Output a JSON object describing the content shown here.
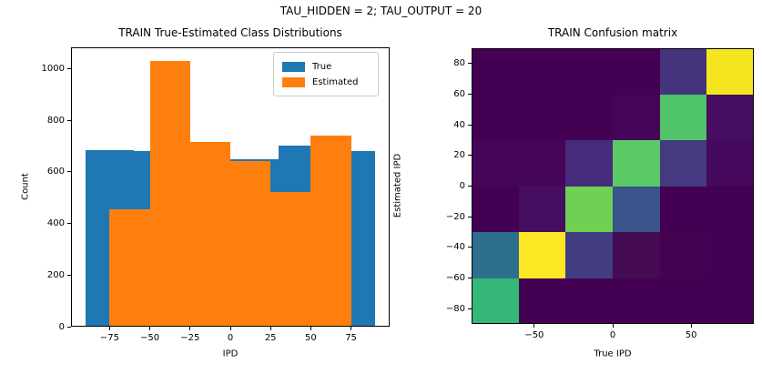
{
  "figure": {
    "suptitle": "TAU_HIDDEN = 2; TAU_OUTPUT = 20",
    "background_color": "#ffffff",
    "text_color": "#000000"
  },
  "chart_data": [
    {
      "type": "bar",
      "subtype": "overlaid-histograms",
      "title": "TRAIN True-Estimated Class Distributions",
      "xlabel": "IPD",
      "ylabel": "Count",
      "xlim": [
        -99,
        99
      ],
      "ylim": [
        0,
        1082
      ],
      "xtick_values": [
        -75,
        -50,
        -25,
        0,
        25,
        50,
        75
      ],
      "xtick_labels": [
        "−75",
        "−50",
        "−25",
        "0",
        "25",
        "50",
        "75"
      ],
      "ytick_values": [
        0,
        200,
        400,
        600,
        800,
        1000
      ],
      "ytick_labels": [
        "0",
        "200",
        "400",
        "600",
        "800",
        "1000"
      ],
      "grid": false,
      "legend_position": "upper right",
      "series": [
        {
          "name": "True",
          "color": "#1f77b4",
          "bin_edges": [
            -90,
            -60,
            -30,
            0,
            30,
            60,
            90
          ],
          "counts": [
            685,
            680,
            705,
            650,
            700,
            680
          ]
        },
        {
          "name": "Estimated",
          "color": "#ff7f0e",
          "bin_edges": [
            -75,
            -50,
            -25,
            0,
            25,
            50,
            75
          ],
          "counts": [
            455,
            1030,
            715,
            640,
            520,
            740
          ]
        }
      ]
    },
    {
      "type": "heatmap",
      "title": "TRAIN Confusion matrix",
      "xlabel": "True IPD",
      "ylabel": "Estimated IPD",
      "colormap": "viridis",
      "xlim": [
        -90,
        90
      ],
      "ylim": [
        -90,
        90
      ],
      "xtick_values": [
        -50,
        0,
        50
      ],
      "xtick_labels": [
        "−50",
        "0",
        "50"
      ],
      "ytick_values": [
        80,
        60,
        40,
        20,
        0,
        -20,
        -40,
        -60,
        -80
      ],
      "ytick_labels": [
        "80",
        "60",
        "40",
        "20",
        "0",
        "−20",
        "−40",
        "−60",
        "−80"
      ],
      "col_bins_true_ipd": [
        -90,
        -60,
        -30,
        0,
        30,
        60,
        90
      ],
      "row_bins_estimated_ipd": [
        -90,
        -60,
        -30,
        0,
        30,
        60,
        90
      ],
      "row_order": "top row = Estimated IPD bin 60..90, bottom row = −90..−60",
      "values_norm_top_to_bottom": [
        [
          0.0,
          0.0,
          0.0,
          0.0,
          0.16,
          0.97
        ],
        [
          0.0,
          0.0,
          0.0,
          0.01,
          0.68,
          0.03
        ],
        [
          0.01,
          0.01,
          0.13,
          0.72,
          0.18,
          0.02
        ],
        [
          0.0,
          0.03,
          0.78,
          0.27,
          0.0,
          0.0
        ],
        [
          0.38,
          1.0,
          0.18,
          0.01,
          0.0,
          0.0
        ],
        [
          0.65,
          0.0,
          0.0,
          0.0,
          0.0,
          0.0
        ]
      ],
      "cell_colors_top_to_bottom": [
        [
          "#440154",
          "#440154",
          "#440154",
          "#440154",
          "#45337d",
          "#f6e620"
        ],
        [
          "#440154",
          "#440154",
          "#440154",
          "#450458",
          "#50c46a",
          "#470d60"
        ],
        [
          "#450559",
          "#450559",
          "#462a7c",
          "#5cc967",
          "#433a82",
          "#46085c"
        ],
        [
          "#440154",
          "#470d60",
          "#6fd053",
          "#3a538b",
          "#440154",
          "#440154"
        ],
        [
          "#2d6f8e",
          "#fde724",
          "#423c82",
          "#440a54",
          "#430351",
          "#440154"
        ],
        [
          "#35b779",
          "#440154",
          "#440154",
          "#440154",
          "#440154",
          "#440154"
        ]
      ]
    }
  ]
}
